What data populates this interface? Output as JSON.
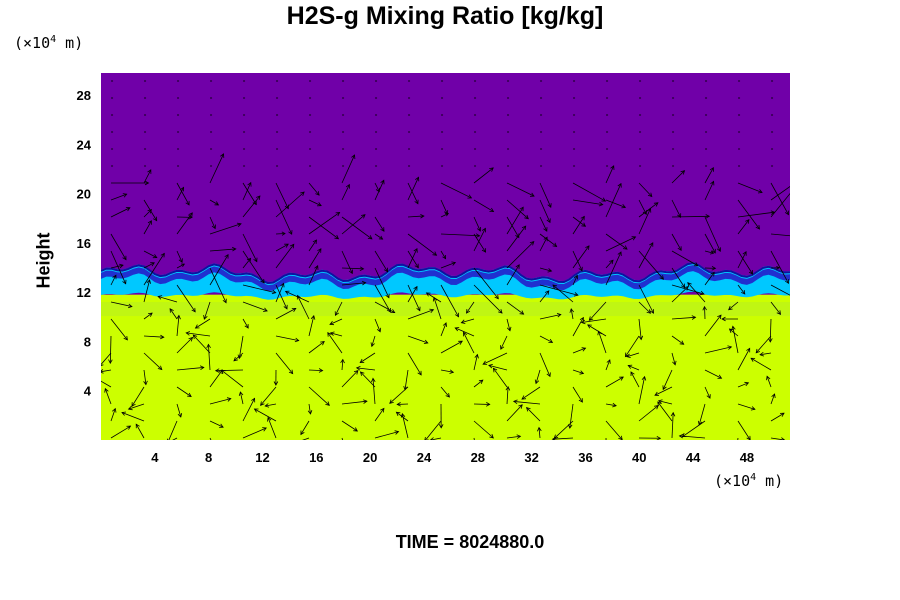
{
  "chart_data": {
    "type": "heatmap",
    "title": "H2S-g Mixing Ratio [kg/kg]",
    "ylabel": "Height",
    "x_unit": {
      "base": "(×10",
      "exp": "4",
      "rest": " m)"
    },
    "y_unit": {
      "base": "(×10",
      "exp": "4",
      "rest": " m)"
    },
    "x_ticks": [
      4,
      8,
      12,
      16,
      20,
      24,
      28,
      32,
      36,
      40,
      44,
      48
    ],
    "y_ticks": [
      4,
      8,
      12,
      16,
      20,
      24,
      28
    ],
    "xlim": [
      0,
      51.2
    ],
    "ylim": [
      0,
      29.8
    ],
    "layers": [
      {
        "name": "lower",
        "y_range": [
          0,
          11.5
        ],
        "color": "#ccff00"
      },
      {
        "name": "transition",
        "y_range": [
          11.5,
          13.5
        ],
        "color": "#00c8ff"
      },
      {
        "name": "upper",
        "y_range": [
          13.5,
          29.8
        ],
        "color": "#7000a8"
      }
    ],
    "vectors": "velocity field overlay",
    "time_label": "TIME = 8024880.0"
  },
  "colors": {
    "upper": "#7000a8",
    "boundary": "#2030d0",
    "mid": "#00c8ff",
    "lower": "#ccff00",
    "lower2": "#b8f020"
  }
}
